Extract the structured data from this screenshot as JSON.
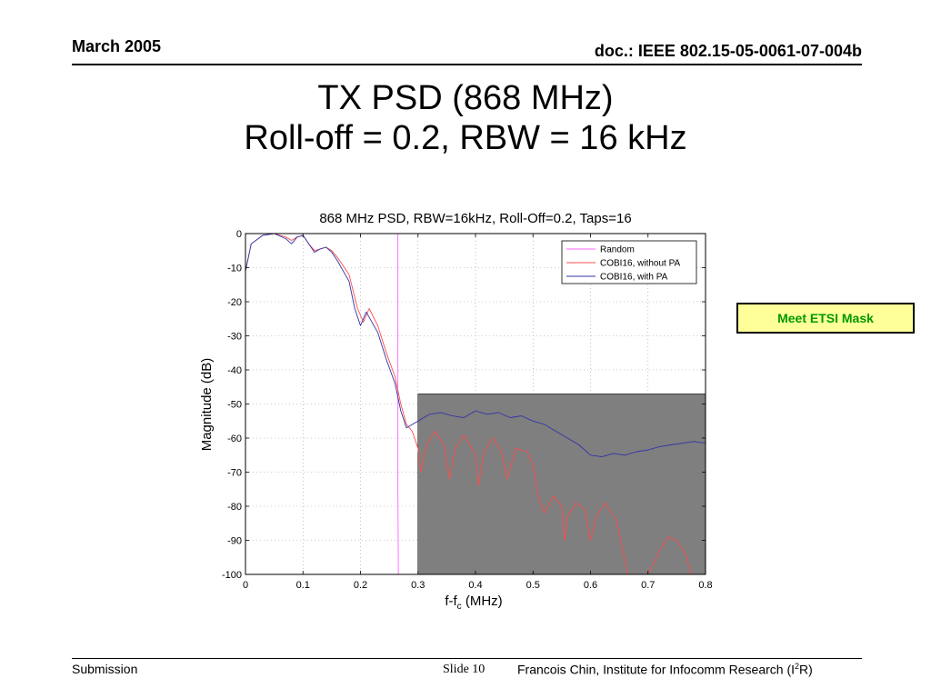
{
  "header": {
    "date": "March 2005",
    "doc": "doc.: IEEE 802.15-05-0061-07-004b"
  },
  "slide_title": {
    "line1": "TX PSD (868 MHz)",
    "line2": "Roll-off = 0.2, RBW = 16 kHz"
  },
  "annotation": {
    "label": "Meet ETSI Mask",
    "text_color": "#009900",
    "bg_color": "#ffff99"
  },
  "footer": {
    "left": "Submission",
    "slide": "Slide 10",
    "right_prefix": "Francois Chin, Institute for Infocomm Research (I",
    "right_sup": "2",
    "right_suffix": "R)"
  },
  "chart_data": {
    "type": "line",
    "title": "868 MHz PSD, RBW=16kHz, Roll-Off=0.2, Taps=16",
    "xlabel_main": "f-f",
    "xlabel_sub": "c",
    "xlabel_unit": " (MHz)",
    "ylabel": "Magnitude (dB)",
    "xlim": [
      0,
      0.8
    ],
    "ylim": [
      -100,
      0
    ],
    "x_ticks": [
      0,
      0.1,
      0.2,
      0.3,
      0.4,
      0.5,
      0.6,
      0.7,
      0.8
    ],
    "x_tick_labels": [
      "0",
      "0.1",
      "0.2",
      "0.3",
      "0.4",
      "0.5",
      "0.6",
      "0.7",
      "0.8"
    ],
    "y_ticks": [
      0,
      -10,
      -20,
      -30,
      -40,
      -50,
      -60,
      -70,
      -80,
      -90,
      -100
    ],
    "y_tick_labels": [
      "0",
      "-10",
      "-20",
      "-30",
      "-40",
      "-50",
      "-60",
      "-70",
      "-80",
      "-90",
      "-100"
    ],
    "grid": true,
    "legend_position": "top-right",
    "mask": {
      "x_start": 0.3,
      "x_end": 0.8,
      "level_db": -47,
      "color": "#7f7f7f"
    },
    "series": [
      {
        "name": "Random",
        "color": "#ff66ff",
        "points": [
          [
            0,
            0
          ],
          [
            0.265,
            0
          ],
          [
            0.265,
            -75
          ],
          [
            0.266,
            -100
          ]
        ]
      },
      {
        "name": "COBI16, without PA",
        "color": "#ff4d4d",
        "points": [
          [
            0,
            -11
          ],
          [
            0.01,
            -3
          ],
          [
            0.03,
            -0.5
          ],
          [
            0.05,
            0
          ],
          [
            0.07,
            -1
          ],
          [
            0.08,
            -2
          ],
          [
            0.09,
            -1
          ],
          [
            0.1,
            -0.5
          ],
          [
            0.11,
            -3
          ],
          [
            0.12,
            -5
          ],
          [
            0.13,
            -4.5
          ],
          [
            0.14,
            -4
          ],
          [
            0.15,
            -5
          ],
          [
            0.16,
            -7
          ],
          [
            0.18,
            -12
          ],
          [
            0.195,
            -22
          ],
          [
            0.205,
            -26
          ],
          [
            0.215,
            -22
          ],
          [
            0.23,
            -27
          ],
          [
            0.245,
            -35
          ],
          [
            0.26,
            -42
          ],
          [
            0.27,
            -50
          ],
          [
            0.28,
            -56
          ],
          [
            0.29,
            -58
          ],
          [
            0.3,
            -63
          ],
          [
            0.305,
            -70
          ],
          [
            0.315,
            -62
          ],
          [
            0.33,
            -58
          ],
          [
            0.345,
            -62
          ],
          [
            0.355,
            -72
          ],
          [
            0.365,
            -63
          ],
          [
            0.38,
            -59
          ],
          [
            0.4,
            -65
          ],
          [
            0.405,
            -74
          ],
          [
            0.415,
            -64
          ],
          [
            0.43,
            -60
          ],
          [
            0.445,
            -64
          ],
          [
            0.455,
            -72
          ],
          [
            0.47,
            -63
          ],
          [
            0.49,
            -64
          ],
          [
            0.5,
            -68
          ],
          [
            0.51,
            -78
          ],
          [
            0.52,
            -82
          ],
          [
            0.535,
            -77
          ],
          [
            0.55,
            -80
          ],
          [
            0.555,
            -90
          ],
          [
            0.56,
            -83
          ],
          [
            0.575,
            -79
          ],
          [
            0.59,
            -81
          ],
          [
            0.6,
            -90
          ],
          [
            0.61,
            -83
          ],
          [
            0.625,
            -79
          ],
          [
            0.645,
            -84
          ],
          [
            0.655,
            -92
          ],
          [
            0.665,
            -100
          ],
          [
            0.7,
            -100
          ],
          [
            0.72,
            -93
          ],
          [
            0.735,
            -89
          ],
          [
            0.75,
            -90
          ],
          [
            0.765,
            -94
          ],
          [
            0.775,
            -100
          ],
          [
            0.8,
            -100
          ]
        ]
      },
      {
        "name": "COBI16, with PA",
        "color": "#3333aa",
        "points": [
          [
            0,
            -11
          ],
          [
            0.01,
            -3
          ],
          [
            0.03,
            -0.5
          ],
          [
            0.05,
            0
          ],
          [
            0.07,
            -1.5
          ],
          [
            0.08,
            -3
          ],
          [
            0.09,
            -1
          ],
          [
            0.1,
            -0.5
          ],
          [
            0.11,
            -3
          ],
          [
            0.12,
            -5.5
          ],
          [
            0.13,
            -4.5
          ],
          [
            0.14,
            -4
          ],
          [
            0.15,
            -5.5
          ],
          [
            0.16,
            -8
          ],
          [
            0.18,
            -14
          ],
          [
            0.19,
            -22
          ],
          [
            0.2,
            -27
          ],
          [
            0.21,
            -23
          ],
          [
            0.23,
            -29
          ],
          [
            0.245,
            -37
          ],
          [
            0.26,
            -44
          ],
          [
            0.27,
            -52
          ],
          [
            0.28,
            -57
          ],
          [
            0.29,
            -56
          ],
          [
            0.3,
            -55
          ],
          [
            0.32,
            -53
          ],
          [
            0.34,
            -52.5
          ],
          [
            0.36,
            -53.5
          ],
          [
            0.38,
            -54
          ],
          [
            0.4,
            -52
          ],
          [
            0.42,
            -53
          ],
          [
            0.44,
            -52.5
          ],
          [
            0.46,
            -54
          ],
          [
            0.48,
            -53.5
          ],
          [
            0.5,
            -55
          ],
          [
            0.52,
            -56
          ],
          [
            0.54,
            -58
          ],
          [
            0.56,
            -60
          ],
          [
            0.58,
            -62
          ],
          [
            0.6,
            -65
          ],
          [
            0.62,
            -65.5
          ],
          [
            0.64,
            -64.5
          ],
          [
            0.66,
            -65
          ],
          [
            0.68,
            -64
          ],
          [
            0.7,
            -63.5
          ],
          [
            0.72,
            -62.5
          ],
          [
            0.74,
            -62
          ],
          [
            0.76,
            -61.5
          ],
          [
            0.78,
            -61
          ],
          [
            0.8,
            -61.5
          ]
        ]
      }
    ]
  }
}
